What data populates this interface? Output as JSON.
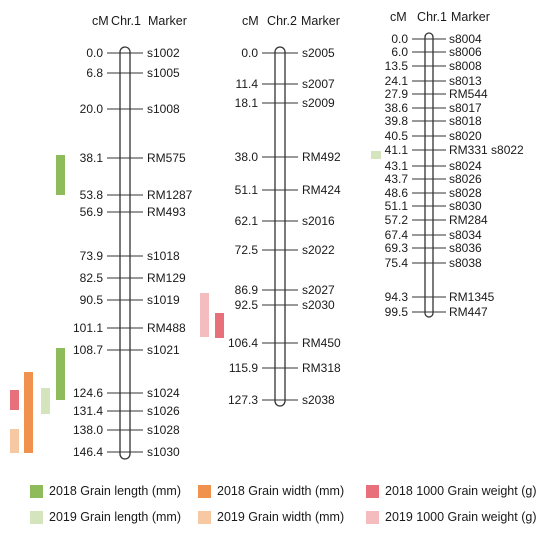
{
  "colors": {
    "grain_length_2018": "#8fbc5a",
    "grain_length_2019": "#d4e4bc",
    "grain_width_2018": "#f0924e",
    "grain_width_2019": "#f6c9a3",
    "grain_weight_2018": "#e8707a",
    "grain_weight_2019": "#f5bcc0",
    "line": "#333333"
  },
  "maps": [
    {
      "header_cm": "cM",
      "header_chr": "Chr.1",
      "header_marker": "Marker",
      "markers": [
        {
          "pos": "0.0",
          "name": "s1002"
        },
        {
          "pos": "6.8",
          "name": "s1005"
        },
        {
          "pos": "20.0",
          "name": "s1008"
        },
        {
          "pos": "38.1",
          "name": "RM575"
        },
        {
          "pos": "53.8",
          "name": "RM1287"
        },
        {
          "pos": "56.9",
          "name": "RM493"
        },
        {
          "pos": "73.9",
          "name": "s1018"
        },
        {
          "pos": "82.5",
          "name": "RM129"
        },
        {
          "pos": "90.5",
          "name": "s1019"
        },
        {
          "pos": "101.1",
          "name": "RM488"
        },
        {
          "pos": "108.7",
          "name": "s1021"
        },
        {
          "pos": "124.6",
          "name": "s1024"
        },
        {
          "pos": "131.4",
          "name": "s1026"
        },
        {
          "pos": "138.0",
          "name": "s1028"
        },
        {
          "pos": "146.4",
          "name": "s1030"
        }
      ]
    },
    {
      "header_cm": "cM",
      "header_chr": "Chr.2",
      "header_marker": "Marker",
      "markers": [
        {
          "pos": "0.0",
          "name": "s2005"
        },
        {
          "pos": "11.4",
          "name": "s2007"
        },
        {
          "pos": "18.1",
          "name": "s2009"
        },
        {
          "pos": "38.0",
          "name": "RM492"
        },
        {
          "pos": "51.1",
          "name": "RM424"
        },
        {
          "pos": "62.1",
          "name": "s2016"
        },
        {
          "pos": "72.5",
          "name": "s2022"
        },
        {
          "pos": "86.9",
          "name": "s2027"
        },
        {
          "pos": "92.5",
          "name": "s2030"
        },
        {
          "pos": "106.4",
          "name": "RM450"
        },
        {
          "pos": "115.9",
          "name": "RM318"
        },
        {
          "pos": "127.3",
          "name": "s2038"
        }
      ]
    },
    {
      "header_cm": "cM",
      "header_chr": "Chr.1",
      "header_marker": "Marker",
      "markers": [
        {
          "pos": "0.0",
          "name": "s8004"
        },
        {
          "pos": "6.0",
          "name": "s8006"
        },
        {
          "pos": "13.5",
          "name": "s8008"
        },
        {
          "pos": "24.1",
          "name": "s8013"
        },
        {
          "pos": "27.9",
          "name": "RM544"
        },
        {
          "pos": "38.6",
          "name": "s8017"
        },
        {
          "pos": "39.8",
          "name": "s8018"
        },
        {
          "pos": "40.5",
          "name": "s8020"
        },
        {
          "pos": "41.1",
          "name": "RM331 s8022"
        },
        {
          "pos": "43.1",
          "name": "s8024"
        },
        {
          "pos": "43.7",
          "name": "s8026"
        },
        {
          "pos": "48.6",
          "name": "s8028"
        },
        {
          "pos": "51.1",
          "name": "s8030"
        },
        {
          "pos": "57.2",
          "name": "RM284"
        },
        {
          "pos": "67.4",
          "name": "s8034"
        },
        {
          "pos": "69.3",
          "name": "s8036"
        },
        {
          "pos": "75.4",
          "name": "s8038"
        },
        {
          "pos": "94.3",
          "name": "RM1345"
        },
        {
          "pos": "99.5",
          "name": "RM447"
        }
      ]
    }
  ],
  "legend": [
    {
      "key": "grain_length_2018",
      "label": "2018 Grain length (mm)"
    },
    {
      "key": "grain_width_2018",
      "label": "2018 Grain width (mm)"
    },
    {
      "key": "grain_weight_2018",
      "label": "2018 1000 Grain weight (g)"
    },
    {
      "key": "grain_length_2019",
      "label": "2019 Grain length (mm)"
    },
    {
      "key": "grain_width_2019",
      "label": "2019 Grain width (mm)"
    },
    {
      "key": "grain_weight_2019",
      "label": "2019 1000 Grain weight (g)"
    }
  ]
}
